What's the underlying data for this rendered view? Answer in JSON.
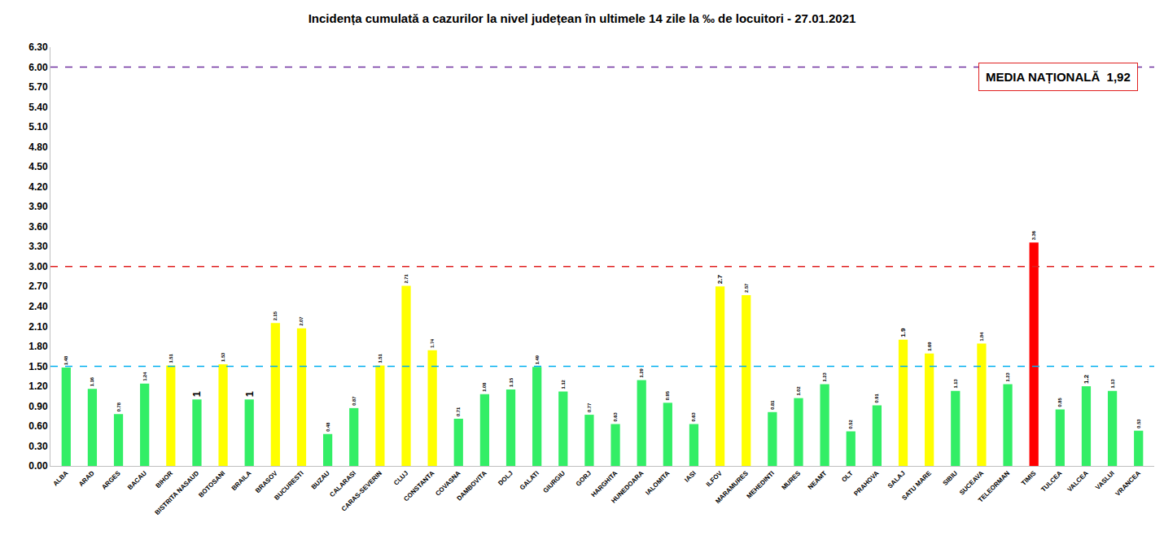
{
  "chart_data": {
    "type": "bar",
    "title": "Incidența cumulată a cazurilor la nivel județean în ultimele 14 zile la ‰ de locuitori - 27.01.2021",
    "categories": [
      "ALBA",
      "ARAD",
      "ARGES",
      "BACAU",
      "BIHOR",
      "BISTRITA NASAUD",
      "BOTOSANI",
      "BRAILA",
      "BRASOV",
      "BUCURESTI",
      "BUZAU",
      "CALARASI",
      "CARAS-SEVERIN",
      "CLUJ",
      "CONSTANTA",
      "COVASNA",
      "DAMBOVITA",
      "DOLJ",
      "GALATI",
      "GIURGIU",
      "GORJ",
      "HARGHITA",
      "HUNEDOARA",
      "IALOMITA",
      "IASI",
      "ILFOV",
      "MARAMURES",
      "MEHEDINTI",
      "MURES",
      "NEAMT",
      "OLT",
      "PRAHOVA",
      "SALAJ",
      "SATU MARE",
      "SIBIU",
      "SUCEAVA",
      "TELEORMAN",
      "TIMIS",
      "TULCEA",
      "VALCEA",
      "VASLUI",
      "VRANCEA"
    ],
    "values": [
      1.48,
      1.16,
      0.78,
      1.24,
      1.51,
      1,
      1.53,
      1,
      2.15,
      2.07,
      0.48,
      0.87,
      1.51,
      2.71,
      1.74,
      0.71,
      1.08,
      1.15,
      1.49,
      1.12,
      0.77,
      0.63,
      1.29,
      0.95,
      0.63,
      2.7,
      2.57,
      0.81,
      1.02,
      1.23,
      0.52,
      0.91,
      1.9,
      1.69,
      1.13,
      1.84,
      1.23,
      3.36,
      0.85,
      1.2,
      1.13,
      0.53
    ],
    "colors": [
      "#33ee66",
      "#33ee66",
      "#33ee66",
      "#33ee66",
      "#ffff00",
      "#33ee66",
      "#ffff00",
      "#33ee66",
      "#ffff00",
      "#ffff00",
      "#33ee66",
      "#33ee66",
      "#ffff00",
      "#ffff00",
      "#ffff00",
      "#33ee66",
      "#33ee66",
      "#33ee66",
      "#33ee66",
      "#33ee66",
      "#33ee66",
      "#33ee66",
      "#33ee66",
      "#33ee66",
      "#33ee66",
      "#ffff00",
      "#ffff00",
      "#33ee66",
      "#33ee66",
      "#33ee66",
      "#33ee66",
      "#33ee66",
      "#ffff00",
      "#ffff00",
      "#33ee66",
      "#ffff00",
      "#33ee66",
      "#ff0000",
      "#33ee66",
      "#33ee66",
      "#33ee66",
      "#33ee66"
    ],
    "data_labels": true,
    "ylim": [
      0,
      6.3
    ],
    "yticks": [
      {
        "value": 0,
        "label": "0.00"
      },
      {
        "value": 0.3,
        "label": "0.30"
      },
      {
        "value": 0.6,
        "label": "0.60"
      },
      {
        "value": 0.9,
        "label": "0.90"
      },
      {
        "value": 1.2,
        "label": "1.20"
      },
      {
        "value": 1.5,
        "label": "1.50"
      },
      {
        "value": 1.8,
        "label": "1.80"
      },
      {
        "value": 2.1,
        "label": "2.10"
      },
      {
        "value": 2.4,
        "label": "2.40"
      },
      {
        "value": 2.7,
        "label": "2.70"
      },
      {
        "value": 3.0,
        "label": "3.00"
      },
      {
        "value": 3.3,
        "label": "3.30"
      },
      {
        "value": 3.6,
        "label": "3.60"
      },
      {
        "value": 3.9,
        "label": "3.90"
      },
      {
        "value": 4.2,
        "label": "4.20"
      },
      {
        "value": 4.5,
        "label": "4.50"
      },
      {
        "value": 4.8,
        "label": "4.80"
      },
      {
        "value": 5.1,
        "label": "5.10"
      },
      {
        "value": 5.4,
        "label": "5.40"
      },
      {
        "value": 5.7,
        "label": "5.70"
      },
      {
        "value": 6.0,
        "label": "6.00"
      },
      {
        "value": 6.3,
        "label": "6.30"
      }
    ],
    "grid": false,
    "thresholds": [
      {
        "value": 6.0,
        "color": "#7030a0",
        "line_style": "dash"
      },
      {
        "value": 3.0,
        "color": "#e02020",
        "line_style": "dash"
      },
      {
        "value": 1.5,
        "color": "#00b0f0",
        "line_style": "dash"
      }
    ],
    "annotations": [
      "MEDIA NAȚIONALĂ  1,92"
    ]
  }
}
